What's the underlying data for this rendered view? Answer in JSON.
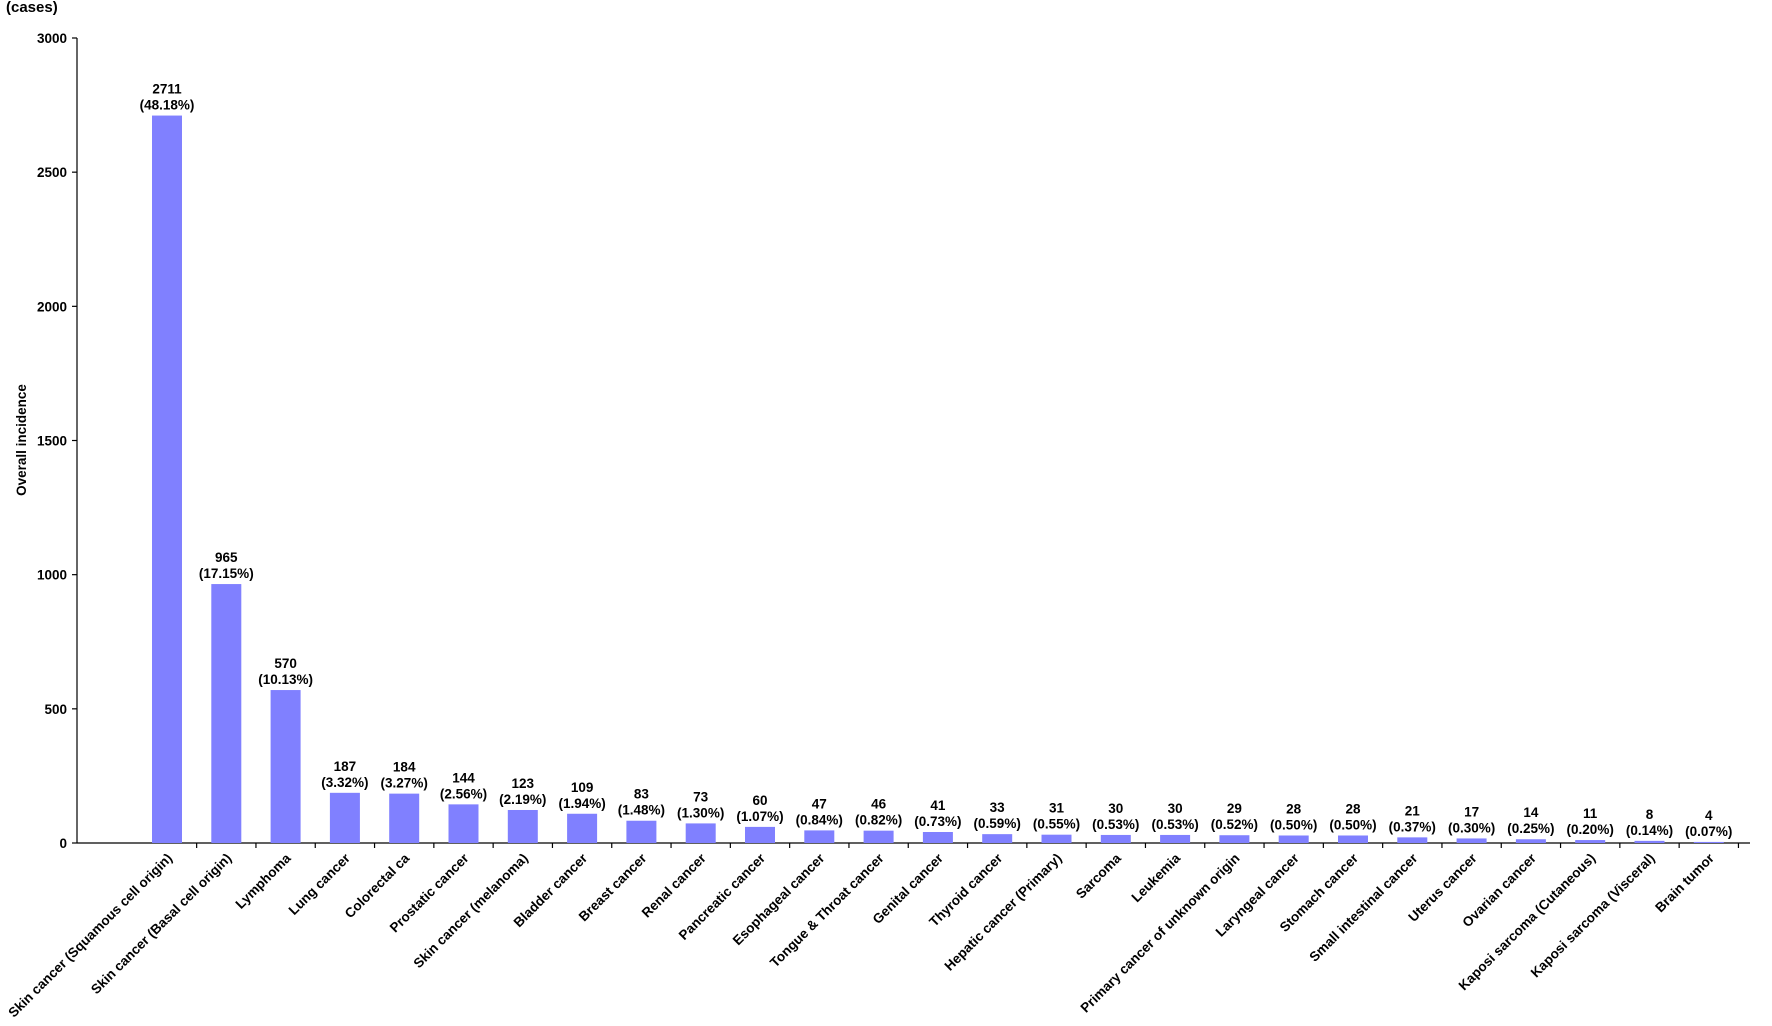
{
  "chart_data": {
    "type": "bar",
    "y_unit": "(cases)",
    "y_label": "Overall incidence",
    "categories": [
      "Skin cancer (Squamous cell origin)",
      "Skin cancer (Basal cell origin)",
      "Lymphoma",
      "Lung cancer",
      "Colorectal ca",
      "Prostatic cancer",
      "Skin cancer (melanoma)",
      "Bladder cancer",
      "Breast cancer",
      "Renal cancer",
      "Pancreatic cancer",
      "Esophageal cancer",
      "Tongue & Throat cancer",
      "Genital cancer",
      "Thyroid cancer",
      "Hepatic cancer (Primary)",
      "Sarcoma",
      "Leukemia",
      "Primary cancer of unknown origin",
      "Laryngeal cancer",
      "Stomach cancer",
      "Small intestinal cancer",
      "Uterus cancer",
      "Ovarian cancer",
      "Kaposi sarcoma (Cutaneous)",
      "Kaposi sarcoma (Visceral)",
      "Brain tumor"
    ],
    "values": [
      2711,
      965,
      570,
      187,
      184,
      144,
      123,
      109,
      83,
      73,
      60,
      47,
      46,
      41,
      33,
      31,
      30,
      30,
      29,
      28,
      28,
      21,
      17,
      14,
      11,
      8,
      4
    ],
    "percent_labels": [
      "(48.18%)",
      "(17.15%)",
      "(10.13%)",
      "(3.32%)",
      "(3.27%)",
      "(2.56%)",
      "(2.19%)",
      "(1.94%)",
      "(1.48%)",
      "(1.30%)",
      "(1.07%)",
      "(0.84%)",
      "(0.82%)",
      "(0.73%)",
      "(0.59%)",
      "(0.55%)",
      "(0.53%)",
      "(0.53%)",
      "(0.52%)",
      "(0.50%)",
      "(0.50%)",
      "(0.37%)",
      "(0.30%)",
      "(0.25%)",
      "(0.20%)",
      "(0.14%)",
      "(0.07%)"
    ],
    "color": "#8080ff",
    "ylim": [
      0,
      3000
    ],
    "yticks": [
      0,
      500,
      1000,
      1500,
      2000,
      2500,
      3000
    ],
    "grid": false
  }
}
